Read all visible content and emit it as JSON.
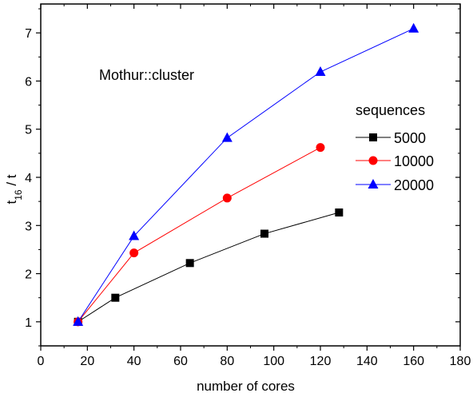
{
  "chart_data": {
    "type": "line",
    "annotation": "Mothur::cluster",
    "xlabel": "number of cores",
    "ylabel_main": "t",
    "ylabel_sub": "16",
    "ylabel_suffix": " / t",
    "xlim": [
      0,
      180
    ],
    "ylim": [
      0.5,
      7.6
    ],
    "xticks": [
      0,
      20,
      40,
      60,
      80,
      100,
      120,
      140,
      160,
      180
    ],
    "yticks": [
      1,
      2,
      3,
      4,
      5,
      6,
      7
    ],
    "legend_title": "sequences",
    "legend_position": "right",
    "grid": false,
    "series": [
      {
        "name": "5000",
        "color": "#000000",
        "marker": "square",
        "x": [
          16,
          32,
          64,
          96,
          128
        ],
        "y": [
          1.0,
          1.5,
          2.22,
          2.83,
          3.27
        ]
      },
      {
        "name": "10000",
        "color": "#ff0000",
        "marker": "circle",
        "x": [
          16,
          40,
          80,
          120
        ],
        "y": [
          1.0,
          2.43,
          3.57,
          4.62
        ]
      },
      {
        "name": "20000",
        "color": "#0000ff",
        "marker": "triangle",
        "x": [
          16,
          40,
          80,
          120,
          160
        ],
        "y": [
          1.0,
          2.78,
          4.82,
          6.19,
          7.09
        ]
      }
    ]
  }
}
